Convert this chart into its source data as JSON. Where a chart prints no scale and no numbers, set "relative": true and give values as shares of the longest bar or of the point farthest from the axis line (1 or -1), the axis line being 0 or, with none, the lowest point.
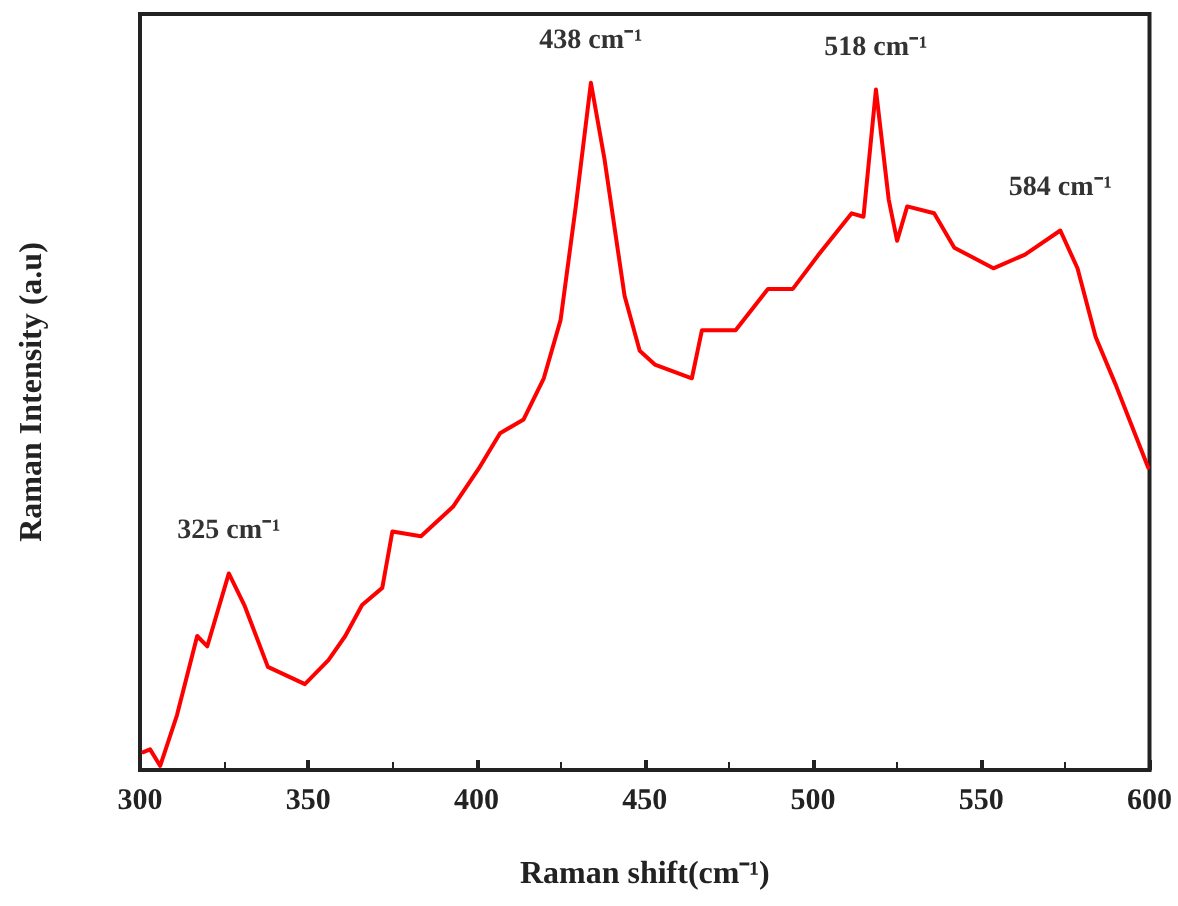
{
  "chart_data": {
    "type": "line",
    "xlabel": "Raman shift(cm⁻¹)",
    "ylabel": "Raman Intensity (a.u)",
    "relative": true,
    "xlim": [
      300,
      600
    ],
    "xticks": [
      300,
      350,
      400,
      450,
      500,
      550,
      600
    ],
    "tick_labels": "x",
    "grid": false,
    "marker": "none",
    "line_style": "solid",
    "series": [
      {
        "color": "#ff0000",
        "x": [
          301,
          303,
          306,
          311,
          317,
          320,
          326.4,
          331,
          338,
          349,
          356,
          361,
          366,
          372,
          375,
          383.5,
          393,
          400.6,
          407,
          414,
          420,
          425,
          429.5,
          434,
          438,
          444,
          448.5,
          453,
          464,
          467,
          477,
          486.6,
          494,
          501.7,
          511.5,
          515,
          518.7,
          522.5,
          525,
          528,
          536,
          542,
          553.6,
          563,
          573.5,
          578.6,
          584,
          590,
          594,
          599.6
        ],
        "values": [
          0.026,
          0.03,
          0.006,
          0.08,
          0.195,
          0.18,
          0.286,
          0.24,
          0.15,
          0.125,
          0.16,
          0.195,
          0.24,
          0.265,
          0.347,
          0.34,
          0.383,
          0.438,
          0.49,
          0.51,
          0.57,
          0.655,
          0.82,
          1.0,
          0.89,
          0.69,
          0.61,
          0.59,
          0.57,
          0.64,
          0.64,
          0.7,
          0.7,
          0.75,
          0.81,
          0.805,
          0.99,
          0.83,
          0.77,
          0.82,
          0.81,
          0.76,
          0.73,
          0.75,
          0.785,
          0.73,
          0.63,
          0.56,
          0.51,
          0.44
        ]
      }
    ],
    "annotations": [
      {
        "text": "325 cm⁻¹",
        "x": 326.4,
        "y": 0.286
      },
      {
        "text": "438 cm⁻¹",
        "x": 434,
        "y": 1.0
      },
      {
        "text": "518 cm⁻¹",
        "x": 518.7,
        "y": 0.99
      },
      {
        "text": "584 cm⁻¹",
        "x": 573.5,
        "y": 0.785
      }
    ]
  }
}
